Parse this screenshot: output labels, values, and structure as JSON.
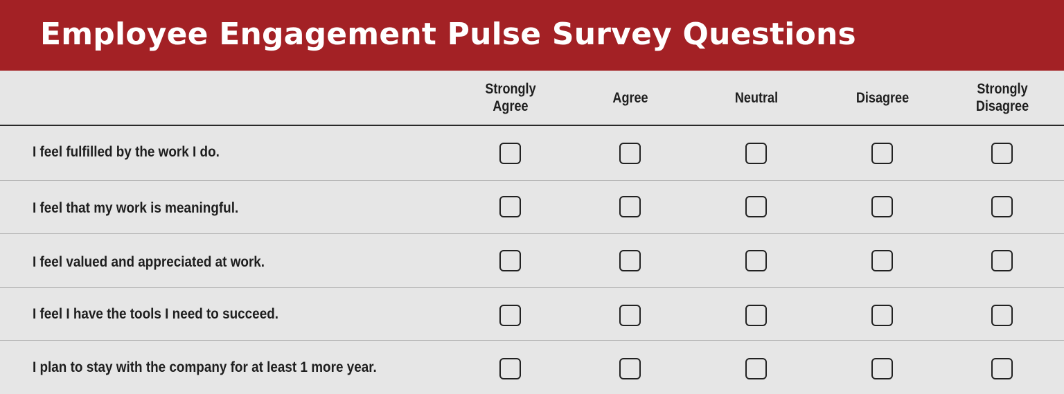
{
  "title": "Employee Engagement Pulse Survey Questions",
  "colors": {
    "banner": "#a32125",
    "background": "#e6e6e6",
    "text": "#1e1e1e"
  },
  "columns": [
    {
      "line1": "Strongly",
      "line2": "Agree"
    },
    {
      "line1": "Agree",
      "line2": ""
    },
    {
      "line1": "Neutral",
      "line2": ""
    },
    {
      "line1": "Disagree",
      "line2": ""
    },
    {
      "line1": "Strongly",
      "line2": "Disagree"
    }
  ],
  "questions": [
    "I feel fulfilled by the work I do.",
    "I feel that my work is meaningful.",
    "I feel valued and appreciated at work.",
    "I feel I have the tools I need to succeed.",
    "I plan to stay with the company for at least 1 more year."
  ],
  "checkbox_icon": "empty-square-checkbox"
}
